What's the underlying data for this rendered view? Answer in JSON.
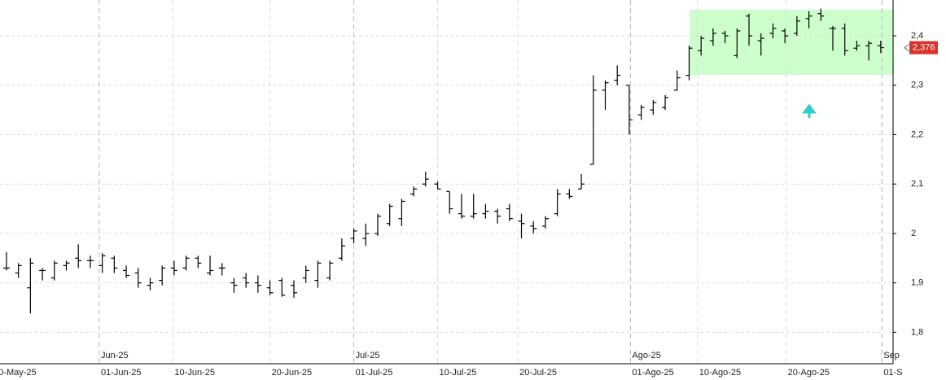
{
  "chart_data": {
    "type": "ohlc",
    "color": "#000000",
    "x": [
      0,
      1,
      2,
      3,
      4,
      5,
      6,
      7,
      8,
      9,
      10,
      11,
      12,
      13,
      14,
      15,
      16,
      17,
      18,
      19,
      20,
      21,
      22,
      23,
      24,
      25,
      26,
      27,
      28,
      29,
      30,
      31,
      32,
      33,
      34,
      35,
      36,
      37,
      38,
      39,
      40,
      41,
      42,
      43,
      44,
      45,
      46,
      47,
      48,
      49,
      50,
      51,
      52,
      53,
      54,
      55,
      56,
      57,
      58,
      59,
      60,
      61,
      62,
      63,
      64,
      65,
      66,
      67,
      68,
      69,
      70,
      71,
      72,
      73
    ],
    "open": [
      1.93,
      1.92,
      1.89,
      1.925,
      1.91,
      1.935,
      1.95,
      1.945,
      1.935,
      1.95,
      1.925,
      1.92,
      1.895,
      1.905,
      1.93,
      1.93,
      1.95,
      1.92,
      1.93,
      1.9,
      1.91,
      1.9,
      1.89,
      1.905,
      1.895,
      1.91,
      1.905,
      1.91,
      1.95,
      1.99,
      1.99,
      2.0,
      2.02,
      2.03,
      2.08,
      2.1,
      2.1,
      2.085,
      2.04,
      2.035,
      2.04,
      2.045,
      2.05,
      2.025,
      2.015,
      2.015,
      2.04,
      2.08,
      2.09,
      2.14,
      2.29,
      2.31,
      2.3,
      2.24,
      2.25,
      2.255,
      2.29,
      2.32,
      2.37,
      2.39,
      2.405,
      2.36,
      2.44,
      2.39,
      2.405,
      2.41,
      2.405,
      2.435,
      2.445,
      2.415,
      2.415,
      2.375,
      2.38,
      2.38
    ],
    "high": [
      1.962,
      1.94,
      1.95,
      1.93,
      1.945,
      1.945,
      1.978,
      1.955,
      1.96,
      1.955,
      1.935,
      1.93,
      1.91,
      1.935,
      1.945,
      1.955,
      1.955,
      1.955,
      1.94,
      1.91,
      1.92,
      1.915,
      1.905,
      1.91,
      1.905,
      1.935,
      1.945,
      1.945,
      1.99,
      2.01,
      2.02,
      2.04,
      2.06,
      2.07,
      2.095,
      2.125,
      2.105,
      2.085,
      2.08,
      2.08,
      2.06,
      2.05,
      2.06,
      2.04,
      2.025,
      2.035,
      2.09,
      2.09,
      2.12,
      2.32,
      2.31,
      2.34,
      2.3,
      2.26,
      2.27,
      2.28,
      2.33,
      2.38,
      2.4,
      2.415,
      2.41,
      2.415,
      2.445,
      2.405,
      2.425,
      2.415,
      2.44,
      2.45,
      2.455,
      2.42,
      2.425,
      2.39,
      2.39,
      2.39
    ],
    "low": [
      1.925,
      1.91,
      1.838,
      1.905,
      1.905,
      1.925,
      1.93,
      1.93,
      1.92,
      1.92,
      1.91,
      1.89,
      1.885,
      1.895,
      1.915,
      1.925,
      1.93,
      1.915,
      1.915,
      1.88,
      1.89,
      1.88,
      1.875,
      1.872,
      1.87,
      1.9,
      1.89,
      1.905,
      1.945,
      1.98,
      1.975,
      1.995,
      2.015,
      2.015,
      2.075,
      2.095,
      2.09,
      2.04,
      2.03,
      2.03,
      2.03,
      2.02,
      2.025,
      1.99,
      2.0,
      2.01,
      2.035,
      2.07,
      2.09,
      2.14,
      2.25,
      2.3,
      2.2,
      2.23,
      2.24,
      2.25,
      2.29,
      2.31,
      2.36,
      2.38,
      2.385,
      2.355,
      2.38,
      2.36,
      2.395,
      2.385,
      2.4,
      2.415,
      2.43,
      2.37,
      2.36,
      2.37,
      2.35,
      2.365
    ],
    "close": [
      1.93,
      1.935,
      1.94,
      1.925,
      1.94,
      1.94,
      1.945,
      1.945,
      1.955,
      1.93,
      1.915,
      1.9,
      1.9,
      1.93,
      1.925,
      1.95,
      1.94,
      1.925,
      1.93,
      1.895,
      1.9,
      1.895,
      1.88,
      1.875,
      1.88,
      1.925,
      1.94,
      1.94,
      1.975,
      2.005,
      2.0,
      2.035,
      2.055,
      2.065,
      2.09,
      2.11,
      2.09,
      2.05,
      2.035,
      2.04,
      2.045,
      2.035,
      2.03,
      2.02,
      2.01,
      2.03,
      2.08,
      2.075,
      2.1,
      2.29,
      2.305,
      2.32,
      2.23,
      2.255,
      2.265,
      2.275,
      2.315,
      2.375,
      2.395,
      2.405,
      2.4,
      2.41,
      2.4,
      2.395,
      2.415,
      2.4,
      2.43,
      2.44,
      2.44,
      2.415,
      2.37,
      2.38,
      2.385,
      2.376
    ],
    "xlim": [
      -0.54,
      74.03
    ],
    "xticks": [
      {
        "value": -0.8,
        "label": "0-May-25"
      },
      {
        "value": 7.75,
        "label": "01-Jun-25"
      },
      {
        "value": 13.9,
        "label": "10-Jun-25"
      },
      {
        "value": 22.0,
        "label": "20-Jun-25"
      },
      {
        "value": 29.0,
        "label": "01-Jul-25"
      },
      {
        "value": 36.0,
        "label": "10-Jul-25"
      },
      {
        "value": 42.7,
        "label": "20-Jul-25"
      },
      {
        "value": 52.1,
        "label": "01-Ago-25"
      },
      {
        "value": 57.7,
        "label": "10-Ago-25"
      },
      {
        "value": 65.1,
        "label": "20-Ago-25"
      },
      {
        "value": 73.1,
        "label": "01-S"
      }
    ],
    "xticks_major": [
      {
        "value": 7.75,
        "label": "Jun-25"
      },
      {
        "value": 29.0,
        "label": "Jul-25"
      },
      {
        "value": 52.1,
        "label": "Ago-25"
      },
      {
        "value": 73.1,
        "label": "Sep"
      }
    ],
    "ylim": [
      1.738,
      2.4725
    ],
    "yticks": [
      {
        "value": 1.8,
        "label": "1,8"
      },
      {
        "value": 1.9,
        "label": "1,9"
      },
      2,
      {
        "value": 2.1,
        "label": "2,1"
      },
      {
        "value": 2.2,
        "label": "2,2"
      },
      {
        "value": 2.3,
        "label": "2,3"
      },
      {
        "value": 2.4,
        "label": "2,4"
      }
    ],
    "last_price": {
      "value": 2.376,
      "label": "2,376"
    },
    "grid": true
  }
}
